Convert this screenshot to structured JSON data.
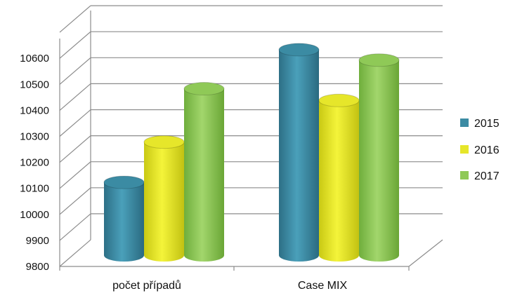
{
  "chart_data": {
    "type": "bar",
    "style": "3d-cylinder",
    "categories": [
      "počet případů",
      "Case MIX"
    ],
    "series": [
      {
        "name": "2015",
        "color": "#3b8ba3",
        "values": [
          10080,
          10590
        ]
      },
      {
        "name": "2016",
        "color": "#e6e62a",
        "values": [
          10235,
          10395
        ]
      },
      {
        "name": "2017",
        "color": "#8fc957",
        "values": [
          10440,
          10550
        ]
      }
    ],
    "y_ticks": [
      "9800",
      "9900",
      "10000",
      "10100",
      "10200",
      "10300",
      "10400",
      "10500",
      "10600"
    ],
    "ylim": [
      9800,
      10700
    ],
    "grid": true,
    "legend_position": "right"
  }
}
